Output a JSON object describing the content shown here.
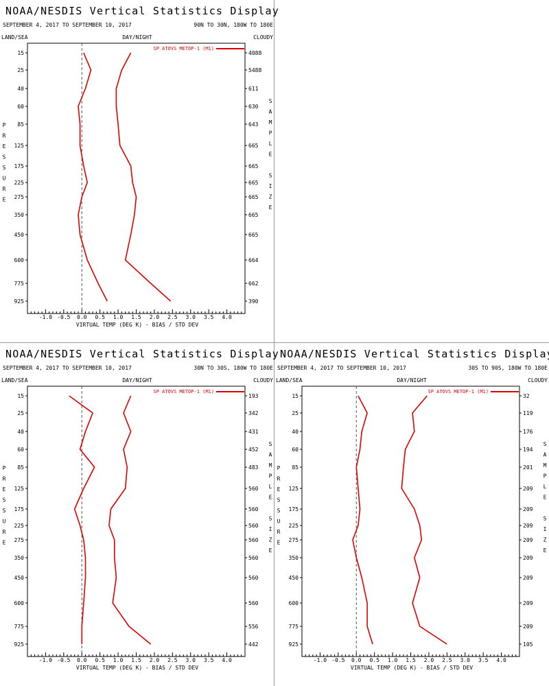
{
  "common": {
    "title": "NOAA/NESDIS Vertical Statistics Display",
    "date_range": "SEPTEMBER 4, 2017 TO SEPTEMBER 10, 2017",
    "land_sea": "LAND/SEA",
    "day_night": "DAY/NIGHT",
    "cloudy": "CLOUDY",
    "left_vertical_label": "PRESSURE",
    "right_vertical_label": "SAMPLE SIZE",
    "legend": "SP ATOVS METOP-1 (M1)",
    "xlabel": "VIRTUAL TEMP (DEG K) - BIAS / STD DEV",
    "pressure_levels": [
      "15",
      "25",
      "40",
      "60",
      "85",
      "125",
      "175",
      "225",
      "275",
      "350",
      "450",
      "600",
      "775",
      "925"
    ],
    "xticks": [
      "-1.0",
      "-0.5",
      "0.0",
      "0.5",
      "1.0",
      "1.5",
      "2.0",
      "2.5",
      "3.0",
      "3.5",
      "4.0"
    ],
    "line_color": "#dd0000",
    "frame_color": "#000000",
    "zero_line": "dashed"
  },
  "chart_data": [
    {
      "type": "line",
      "region": "90N TO 30N, 180W TO 180E",
      "sample_size": [
        "4088",
        "5488",
        "611",
        "630",
        "643",
        "665",
        "665",
        "665",
        "665",
        "665",
        "665",
        "664",
        "662",
        "390"
      ],
      "xlim": [
        -1.5,
        4.5
      ],
      "series": [
        {
          "name": "SP ATOVS METOP-1 (M1)",
          "kind": "bias",
          "values": [
            0.05,
            0.25,
            0.1,
            -0.1,
            -0.05,
            -0.05,
            0.05,
            0.15,
            0.0,
            -0.1,
            -0.05,
            0.15,
            0.45,
            0.7
          ]
        },
        {
          "name": "SP ATOVS METOP-1 (M1)",
          "kind": "std_dev",
          "values": [
            1.35,
            1.1,
            0.95,
            0.95,
            1.0,
            1.05,
            1.35,
            1.4,
            1.5,
            1.45,
            1.35,
            1.2,
            1.9,
            2.45
          ]
        }
      ]
    },
    {
      "type": "line",
      "region": "30N TO 30S, 180W TO 180E",
      "sample_size": [
        "193",
        "342",
        "431",
        "452",
        "483",
        "560",
        "560",
        "560",
        "560",
        "560",
        "560",
        "560",
        "556",
        "442"
      ],
      "xlim": [
        -1.5,
        4.5
      ],
      "series": [
        {
          "name": "SP ATOVS METOP-1 (M1)",
          "kind": "bias",
          "values": [
            -0.35,
            0.3,
            0.1,
            -0.05,
            0.35,
            0.05,
            -0.2,
            -0.05,
            0.05,
            0.1,
            0.1,
            0.05,
            0.0,
            0.0
          ]
        },
        {
          "name": "SP ATOVS METOP-1 (M1)",
          "kind": "std_dev",
          "values": [
            1.35,
            1.15,
            1.35,
            1.15,
            1.25,
            1.2,
            0.8,
            0.75,
            0.9,
            0.9,
            0.95,
            0.85,
            1.3,
            1.9
          ]
        }
      ]
    },
    {
      "type": "line",
      "region": "30S TO 90S, 180W TO 180E",
      "sample_size": [
        "32",
        "119",
        "176",
        "194",
        "201",
        "209",
        "209",
        "209",
        "209",
        "209",
        "209",
        "209",
        "209",
        "105"
      ],
      "xlim": [
        -1.5,
        4.5
      ],
      "series": [
        {
          "name": "SP ATOVS METOP-1 (M1)",
          "kind": "bias",
          "values": [
            0.05,
            0.3,
            0.15,
            0.1,
            0.0,
            0.05,
            0.1,
            0.05,
            -0.1,
            0.0,
            0.15,
            0.3,
            0.3,
            0.45
          ]
        },
        {
          "name": "SP ATOVS METOP-1 (M1)",
          "kind": "std_dev",
          "values": [
            1.95,
            1.55,
            1.6,
            1.35,
            1.3,
            1.25,
            1.6,
            1.75,
            1.8,
            1.6,
            1.75,
            1.55,
            1.75,
            2.5
          ]
        }
      ]
    }
  ]
}
